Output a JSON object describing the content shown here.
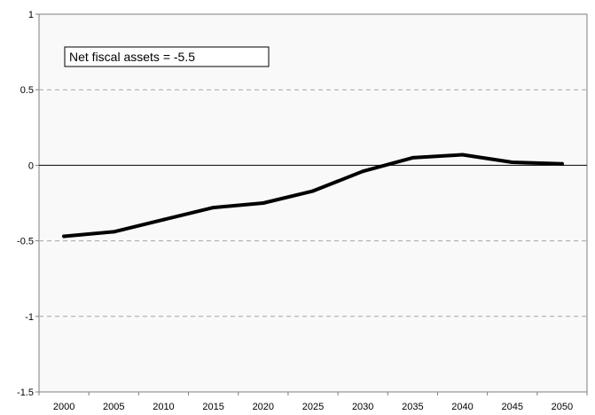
{
  "chart_data": {
    "type": "line",
    "title": "",
    "xlabel": "",
    "ylabel": "",
    "x": [
      2000,
      2005,
      2010,
      2015,
      2020,
      2025,
      2030,
      2035,
      2040,
      2045,
      2050
    ],
    "series": [
      {
        "values": [
          -0.47,
          -0.44,
          -0.36,
          -0.28,
          -0.25,
          -0.17,
          -0.04,
          0.05,
          0.07,
          0.02,
          0.01
        ]
      }
    ],
    "ylim": [
      -1.5,
      1
    ],
    "y_ticks": [
      1,
      0.5,
      0,
      -0.5,
      -1,
      -1.5
    ],
    "y_tick_labels": [
      "1",
      "0.5",
      "0",
      "-0.5",
      "-1",
      "-1.5"
    ],
    "x_tick_labels": [
      "2000",
      "2005",
      "2010",
      "2015",
      "2020",
      "2025",
      "2030",
      "2035",
      "2040",
      "2045",
      "2050"
    ],
    "gridlines": "dashed at 0.5, -0.5, -1",
    "zero_line": true,
    "annotation": "Net fiscal assets = -5.5",
    "colors": {
      "plot_background": "#f9f9f9",
      "series_line": "#000000",
      "grid": "#a6a6a6",
      "axis": "#808080"
    }
  }
}
